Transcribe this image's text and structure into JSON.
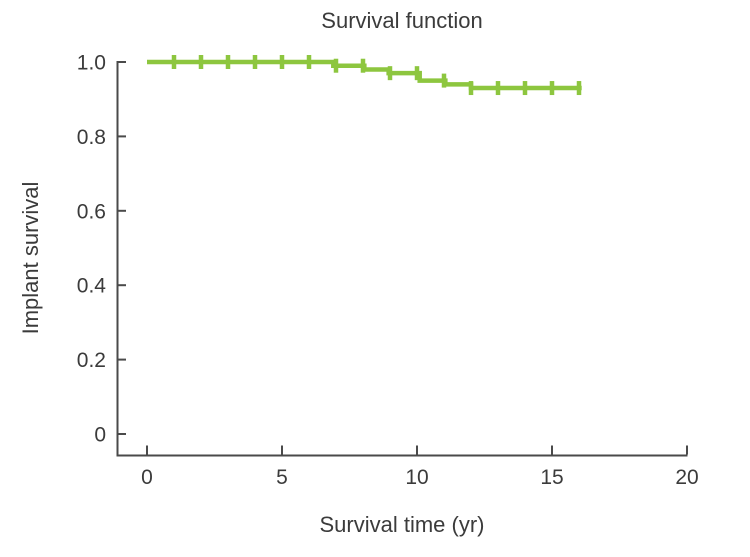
{
  "colors": {
    "curve": "#8dc63f",
    "axis": "#4a4a4a",
    "text": "#3b3b3b",
    "background": "#ffffff"
  },
  "chart_data": {
    "type": "line",
    "subtype": "kaplan-meier-step",
    "title": "Survival function",
    "xlabel": "Survival time (yr)",
    "ylabel": "Implant survival",
    "xlim": [
      0,
      20
    ],
    "ylim": [
      0,
      1.0
    ],
    "x_ticks": [
      0,
      5,
      10,
      15,
      20
    ],
    "x_tick_labels": [
      "0",
      "5",
      "10",
      "15",
      "20"
    ],
    "y_ticks": [
      1.0,
      0.8,
      0.6,
      0.4,
      0.2,
      0
    ],
    "y_tick_labels": [
      "1.0",
      "0.8",
      "0.6",
      "0.4",
      "0.2",
      "0"
    ],
    "grid": false,
    "legend_position": "none",
    "series": [
      {
        "name": "Implant survival",
        "color": "#8dc63f",
        "step_points": [
          [
            0,
            1.0
          ],
          [
            6.9,
            0.99
          ],
          [
            8.05,
            0.98
          ],
          [
            8.95,
            0.97
          ],
          [
            10.1,
            0.95
          ],
          [
            11.05,
            0.94
          ],
          [
            12.0,
            0.93
          ]
        ],
        "end_x": 16.1,
        "final_value": 0.93,
        "censor_marks": [
          [
            1,
            1.0
          ],
          [
            2,
            1.0
          ],
          [
            3,
            1.0
          ],
          [
            4,
            1.0
          ],
          [
            5,
            1.0
          ],
          [
            6,
            1.0
          ],
          [
            7,
            0.99
          ],
          [
            8,
            0.99
          ],
          [
            9,
            0.97
          ],
          [
            10,
            0.97
          ],
          [
            11,
            0.95
          ],
          [
            12,
            0.93
          ],
          [
            13,
            0.93
          ],
          [
            14,
            0.93
          ],
          [
            15,
            0.93
          ],
          [
            16,
            0.93
          ]
        ]
      }
    ]
  }
}
